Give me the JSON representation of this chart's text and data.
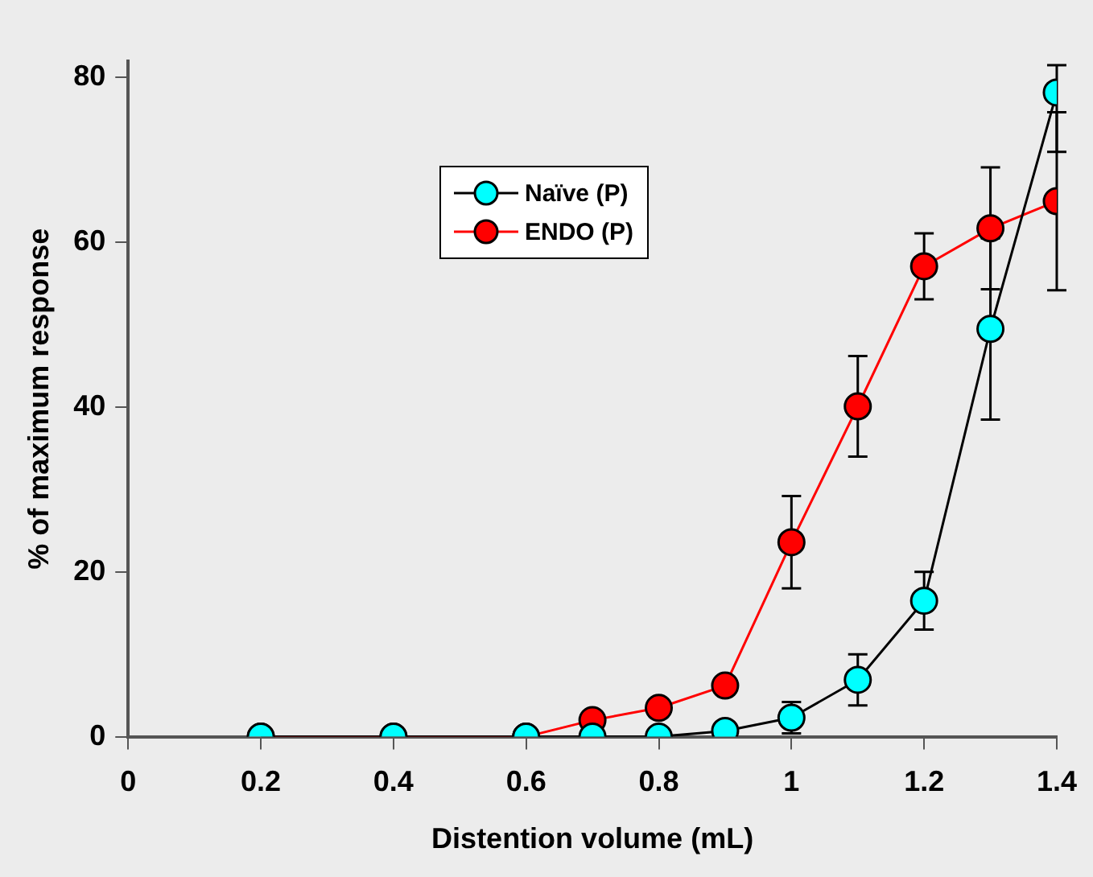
{
  "chart_data": {
    "type": "line",
    "xlabel": "Distention volume (mL)",
    "ylabel": "% of maximum response",
    "x": [
      0.2,
      0.4,
      0.6,
      0.7,
      0.8,
      0.9,
      1.0,
      1.1,
      1.2,
      1.3,
      1.4
    ],
    "series": [
      {
        "name": "Naïve (P)",
        "color": "#00ffff",
        "values": [
          0,
          0,
          0,
          0,
          0,
          0.7,
          2.3,
          6.9,
          16.5,
          49.5,
          78.2
        ],
        "errors": [
          null,
          null,
          null,
          null,
          null,
          null,
          1.9,
          3.1,
          3.5,
          11,
          [
            71,
            81.5
          ]
        ]
      },
      {
        "name": "ENDO (P)",
        "color": "#ff0000",
        "values": [
          0,
          0,
          0,
          2,
          3.5,
          6.2,
          23.6,
          40.1,
          57.1,
          61.7,
          65
        ],
        "errors": [
          null,
          null,
          null,
          null,
          null,
          null,
          5.6,
          6.1,
          4,
          7.4,
          10.8
        ]
      }
    ],
    "xlim": [
      0,
      1.4
    ],
    "xticks": [
      0,
      0.2,
      0.4,
      0.6,
      0.8,
      1,
      1.2,
      1.4
    ],
    "ylim": [
      0,
      82
    ],
    "yticks": [
      0,
      20,
      40,
      60,
      80
    ],
    "grid": false,
    "legend": "top left",
    "marker": "circle",
    "line_style": "solid"
  }
}
